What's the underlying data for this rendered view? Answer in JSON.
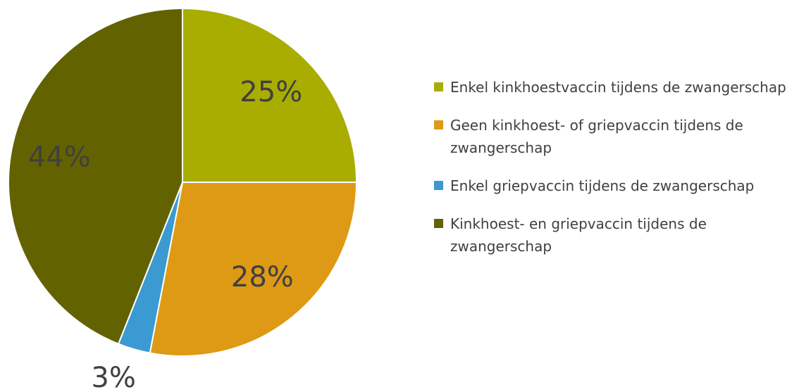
{
  "chart_data": {
    "type": "pie",
    "categories": [
      "Enkel kinkhoestvaccin tijdens de zwangerschap",
      "Geen kinkhoest- of griepvaccin tijdens de zwangerschap",
      "Enkel griepvaccin tijdens de zwangerschap",
      "Kinkhoest- en griepvaccin tijdens de zwangerschap"
    ],
    "values": [
      25,
      28,
      3,
      44
    ],
    "value_labels": [
      "25%",
      "28%",
      "3%",
      "44%"
    ],
    "colors": [
      "#a9ad00",
      "#de9a14",
      "#3a9ad1",
      "#636200"
    ],
    "legend": "right"
  }
}
